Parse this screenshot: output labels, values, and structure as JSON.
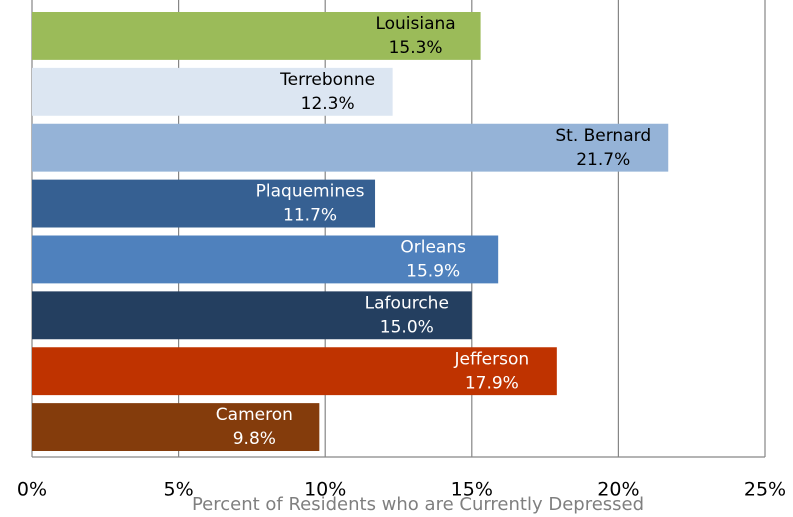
{
  "chart_data": {
    "type": "bar",
    "orientation": "horizontal",
    "x_label": "Percent of Residents  who are Currently Depressed",
    "categories": [
      "Louisiana",
      "Terrebonne",
      "St. Bernard",
      "Plaquemines",
      "Orleans",
      "Lafourche",
      "Jefferson",
      "Cameron"
    ],
    "values": [
      15.3,
      12.3,
      21.7,
      11.7,
      15.9,
      15.0,
      17.9,
      9.8
    ],
    "value_labels": [
      "15.3%",
      "12.3%",
      "21.7%",
      "11.7%",
      "15.9%",
      "15.0%",
      "17.9%",
      "9.8%"
    ],
    "colors": [
      "#9bbb59",
      "#dce6f2",
      "#95b3d7",
      "#366092",
      "#4f81bd",
      "#243f60",
      "#bf3300",
      "#843c0c"
    ],
    "xlim": [
      0,
      25
    ],
    "xticks": [
      {
        "value": 0,
        "label": "0%"
      },
      {
        "value": 5,
        "label": "5%"
      },
      {
        "value": 10,
        "label": "10%"
      },
      {
        "value": 15,
        "label": "15%"
      },
      {
        "value": 20,
        "label": "20%"
      },
      {
        "value": 25,
        "label": "25%"
      }
    ],
    "grid": true
  }
}
